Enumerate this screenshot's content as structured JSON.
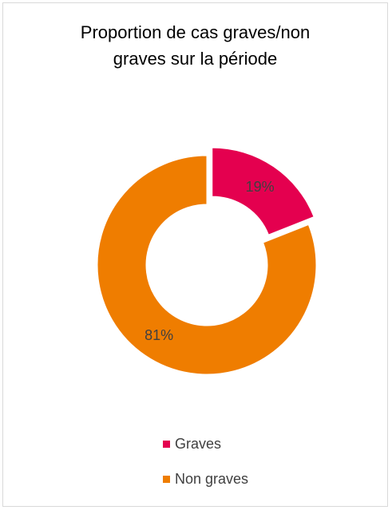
{
  "chart_data": {
    "type": "pie",
    "variant": "donut",
    "title_lines": [
      "Proportion de cas graves/non",
      "graves sur la période"
    ],
    "categories": [
      "Graves",
      "Non graves"
    ],
    "values": [
      19,
      81
    ],
    "value_labels": [
      "19%",
      "81%"
    ],
    "colors": [
      "#E4004F",
      "#EF7D00"
    ],
    "exploded": [
      "Graves"
    ],
    "legend_position": "bottom"
  }
}
